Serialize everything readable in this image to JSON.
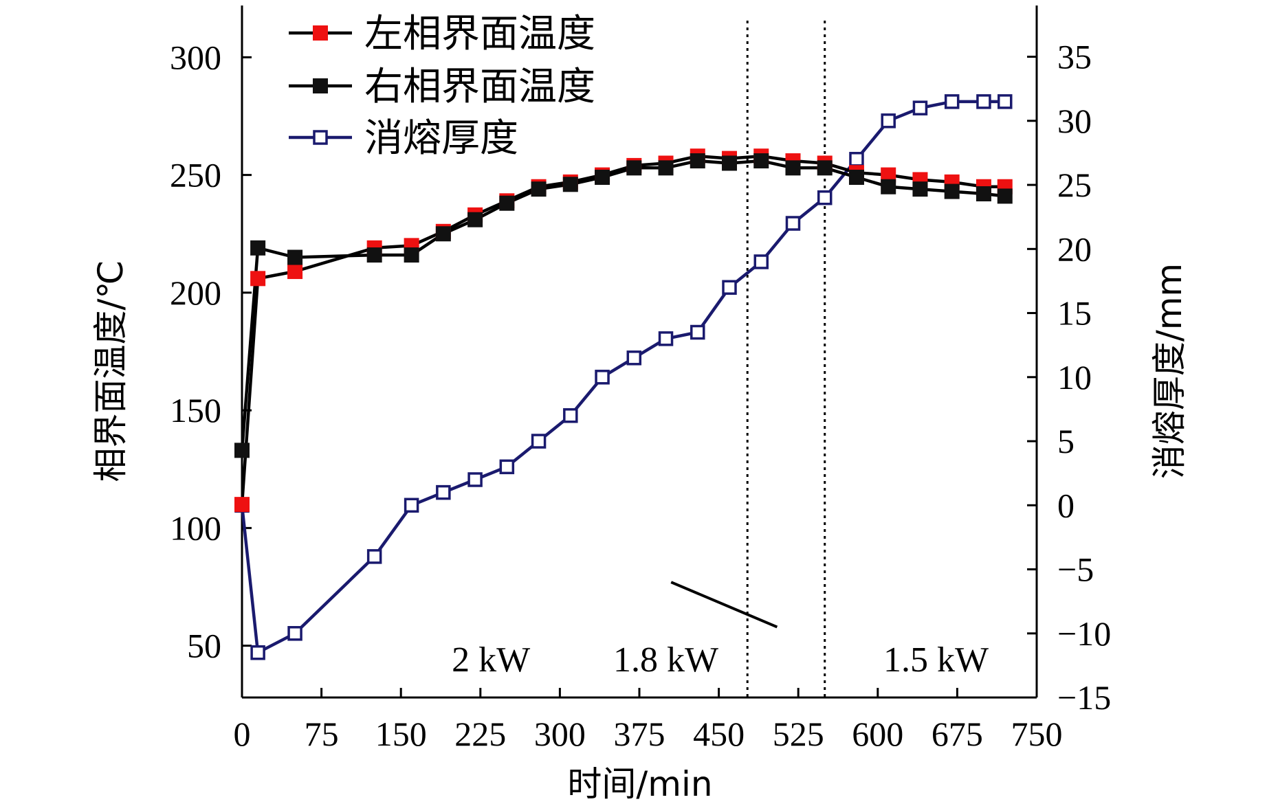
{
  "chart_data": {
    "type": "line",
    "title": "",
    "xlabel": "时间/min",
    "ylabel_left": "相界面温度/℃",
    "ylabel_right": "消熔厚度/mm",
    "xlim": [
      0,
      750
    ],
    "ylim_left": [
      28,
      322
    ],
    "ylim_right": [
      -15,
      39
    ],
    "x_ticks": [
      0,
      75,
      150,
      225,
      300,
      375,
      450,
      525,
      600,
      675,
      750
    ],
    "y_left_ticks": [
      50,
      100,
      150,
      200,
      250,
      300
    ],
    "y_right_ticks": [
      -15,
      -10,
      -5,
      0,
      5,
      10,
      15,
      20,
      25,
      30,
      35
    ],
    "y_right_tick_labels": [
      "−15",
      "−10",
      "−5",
      "0",
      "5",
      "10",
      "15",
      "20",
      "25",
      "30",
      "35"
    ],
    "grid": false,
    "legend_position": "top-left",
    "series": [
      {
        "name": "左相界面温度",
        "axis": "left",
        "color": "#ee1111",
        "line_color": "#000000",
        "marker": "filled-square",
        "x": [
          0,
          15,
          50,
          125,
          160,
          190,
          220,
          250,
          280,
          310,
          340,
          370,
          400,
          430,
          460,
          490,
          520,
          550,
          580,
          610,
          640,
          670,
          700,
          720
        ],
        "y": [
          110,
          206,
          209,
          219,
          220,
          226,
          233,
          239,
          245,
          247,
          250,
          254,
          255,
          258,
          257,
          258,
          256,
          255,
          251,
          250,
          248,
          247,
          245,
          245
        ]
      },
      {
        "name": "右相界面温度",
        "axis": "left",
        "color": "#111111",
        "line_color": "#000000",
        "marker": "filled-square",
        "x": [
          0,
          15,
          50,
          125,
          160,
          190,
          220,
          250,
          280,
          310,
          340,
          370,
          400,
          430,
          460,
          490,
          520,
          550,
          580,
          610,
          640,
          670,
          700,
          720
        ],
        "y": [
          133,
          219,
          215,
          216,
          216,
          225,
          231,
          238,
          244,
          246,
          249,
          253,
          253,
          256,
          255,
          256,
          253,
          253,
          249,
          245,
          244,
          243,
          242,
          241
        ]
      },
      {
        "name": "消熔厚度",
        "axis": "right",
        "color": "#1a1a6e",
        "line_color": "#1a1a6e",
        "marker": "open-square",
        "x": [
          0,
          15,
          50,
          125,
          160,
          190,
          220,
          250,
          280,
          310,
          340,
          370,
          400,
          430,
          460,
          490,
          520,
          550,
          580,
          610,
          640,
          670,
          700,
          720
        ],
        "y": [
          0,
          -11.5,
          -10,
          -4,
          0,
          1,
          2,
          3,
          5,
          7,
          10,
          11.5,
          13,
          13.5,
          17,
          19,
          22,
          24,
          27,
          30,
          31,
          31.5,
          31.5,
          31.5
        ]
      }
    ],
    "vertical_lines": [
      477,
      550
    ],
    "annotations": [
      {
        "text": "2 kW",
        "x": 235,
        "y_right": -12
      },
      {
        "text": "1.8 kW",
        "x": 400,
        "y_right": -12
      },
      {
        "text": "1.5 kW",
        "x": 655,
        "y_right": -12
      }
    ],
    "pointer_line": {
      "from": [
        405,
        -6
      ],
      "to": [
        505,
        -9.5
      ]
    }
  }
}
